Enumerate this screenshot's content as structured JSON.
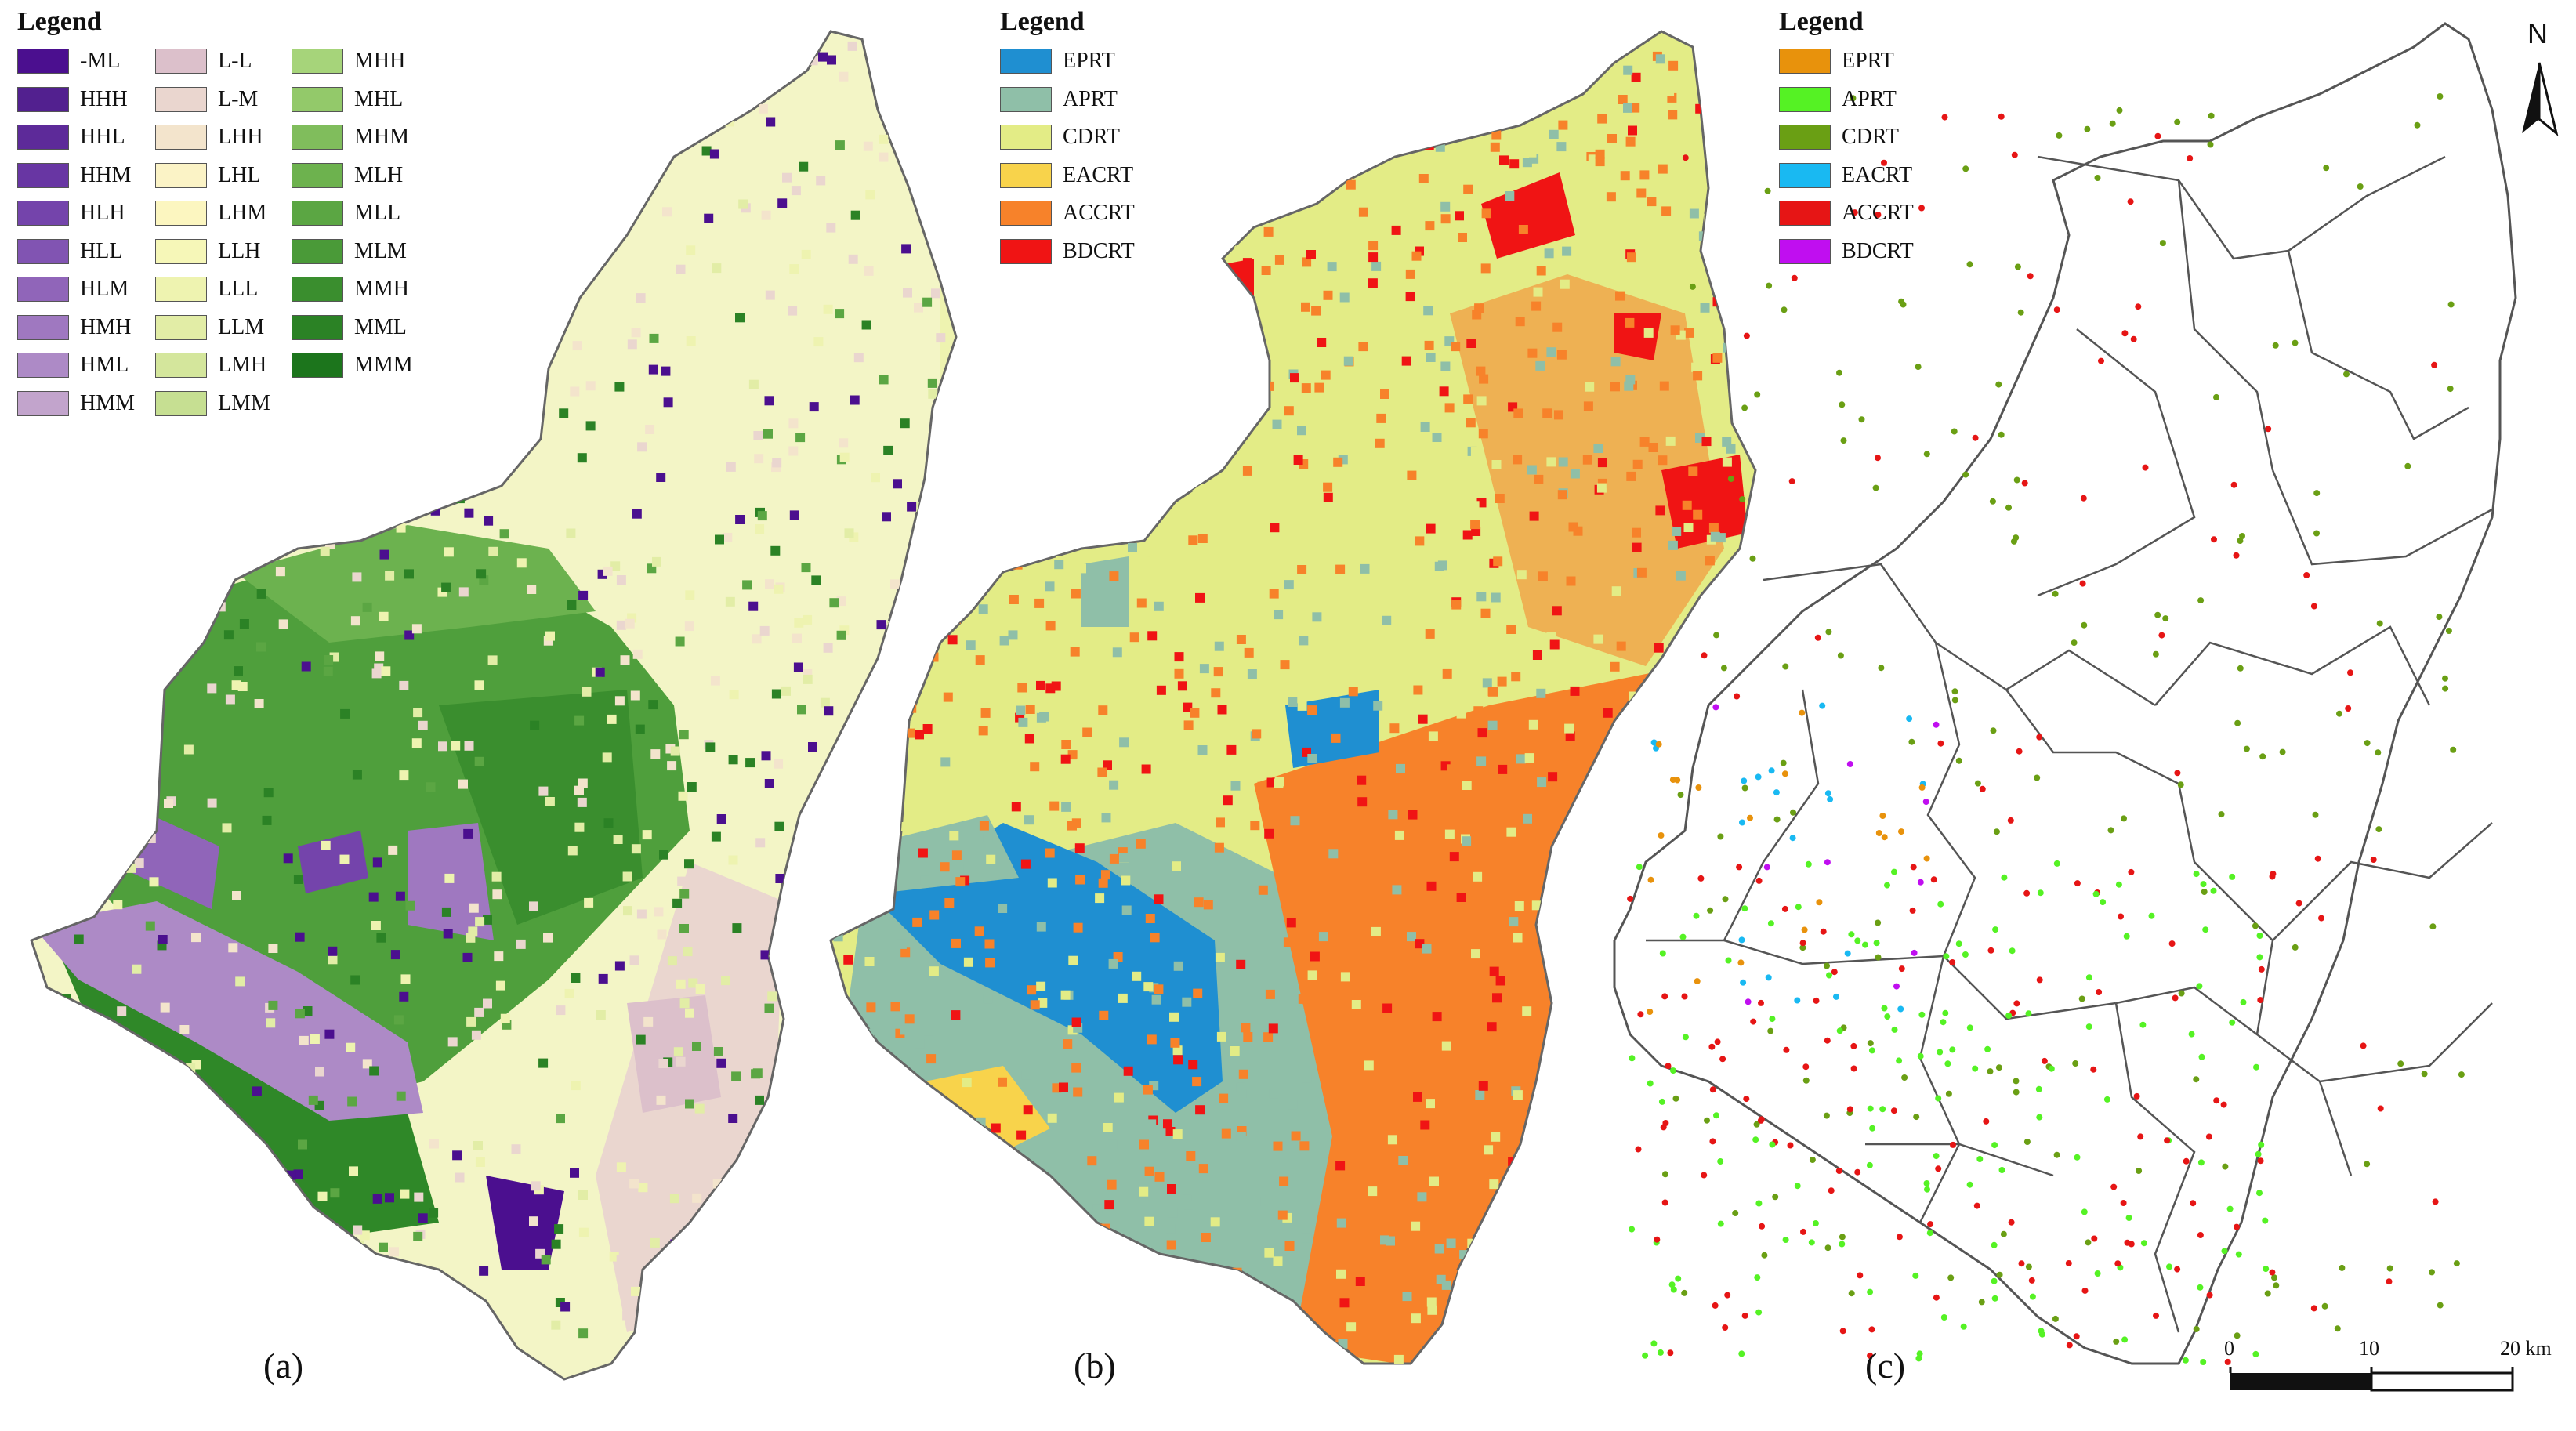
{
  "panels": [
    {
      "id": "a",
      "label": "(a)",
      "legend_title": "Legend",
      "legend_items": [
        {
          "label": "-ML",
          "color": "#4b0f8f"
        },
        {
          "label": "HHH",
          "color": "#52208f"
        },
        {
          "label": "HHL",
          "color": "#5d2a99"
        },
        {
          "label": "HHM",
          "color": "#6836a3"
        },
        {
          "label": "HLH",
          "color": "#7444ab"
        },
        {
          "label": "HLL",
          "color": "#8154b2"
        },
        {
          "label": "HLM",
          "color": "#9065b9"
        },
        {
          "label": "HMH",
          "color": "#9f78c0"
        },
        {
          "label": "HML",
          "color": "#ad8ac6"
        },
        {
          "label": "HMM",
          "color": "#c2a4cc"
        },
        {
          "label": "L-L",
          "color": "#dcc0cb"
        },
        {
          "label": "L-M",
          "color": "#ead6cf"
        },
        {
          "label": "LHH",
          "color": "#f3e4cc"
        },
        {
          "label": "LHL",
          "color": "#fbf3c6"
        },
        {
          "label": "LHM",
          "color": "#fcf6c0"
        },
        {
          "label": "LLH",
          "color": "#f6f7b8"
        },
        {
          "label": "LLL",
          "color": "#eef3b0"
        },
        {
          "label": "LLM",
          "color": "#e2eda6"
        },
        {
          "label": "LMH",
          "color": "#d4e69c"
        },
        {
          "label": "LMM",
          "color": "#c6df92"
        },
        {
          "label": "MHH",
          "color": "#a6d47a"
        },
        {
          "label": "MHL",
          "color": "#93c96a"
        },
        {
          "label": "MHM",
          "color": "#80bd5c"
        },
        {
          "label": "MLH",
          "color": "#6db24e"
        },
        {
          "label": "MLL",
          "color": "#5ba643"
        },
        {
          "label": "MLM",
          "color": "#4a9a38"
        },
        {
          "label": "MMH",
          "color": "#3a8e2e"
        },
        {
          "label": "MML",
          "color": "#2b8225"
        },
        {
          "label": "MMM",
          "color": "#1c751c"
        }
      ]
    },
    {
      "id": "b",
      "label": "(b)",
      "legend_title": "Legend",
      "legend_items": [
        {
          "label": "EPRT",
          "color": "#1f8fd1"
        },
        {
          "label": "APRT",
          "color": "#8fbfa8"
        },
        {
          "label": "CDRT",
          "color": "#e3ec86"
        },
        {
          "label": "EACRT",
          "color": "#f8d34b"
        },
        {
          "label": "ACCRT",
          "color": "#f7822a"
        },
        {
          "label": "BDCRT",
          "color": "#f01414"
        }
      ]
    },
    {
      "id": "c",
      "label": "(c)",
      "legend_title": "Legend",
      "legend_items": [
        {
          "label": "EPRT",
          "color": "#e8920c"
        },
        {
          "label": "APRT",
          "color": "#55f224"
        },
        {
          "label": "CDRT",
          "color": "#6a9f14"
        },
        {
          "label": "EACRT",
          "color": "#19b9f2"
        },
        {
          "label": "ACCRT",
          "color": "#e61515"
        },
        {
          "label": "BDCRT",
          "color": "#c00ef0"
        }
      ]
    }
  ],
  "north_arrow": {
    "letter": "N"
  },
  "scale_bar": {
    "ticks": [
      "0",
      "10",
      "20 km"
    ]
  }
}
